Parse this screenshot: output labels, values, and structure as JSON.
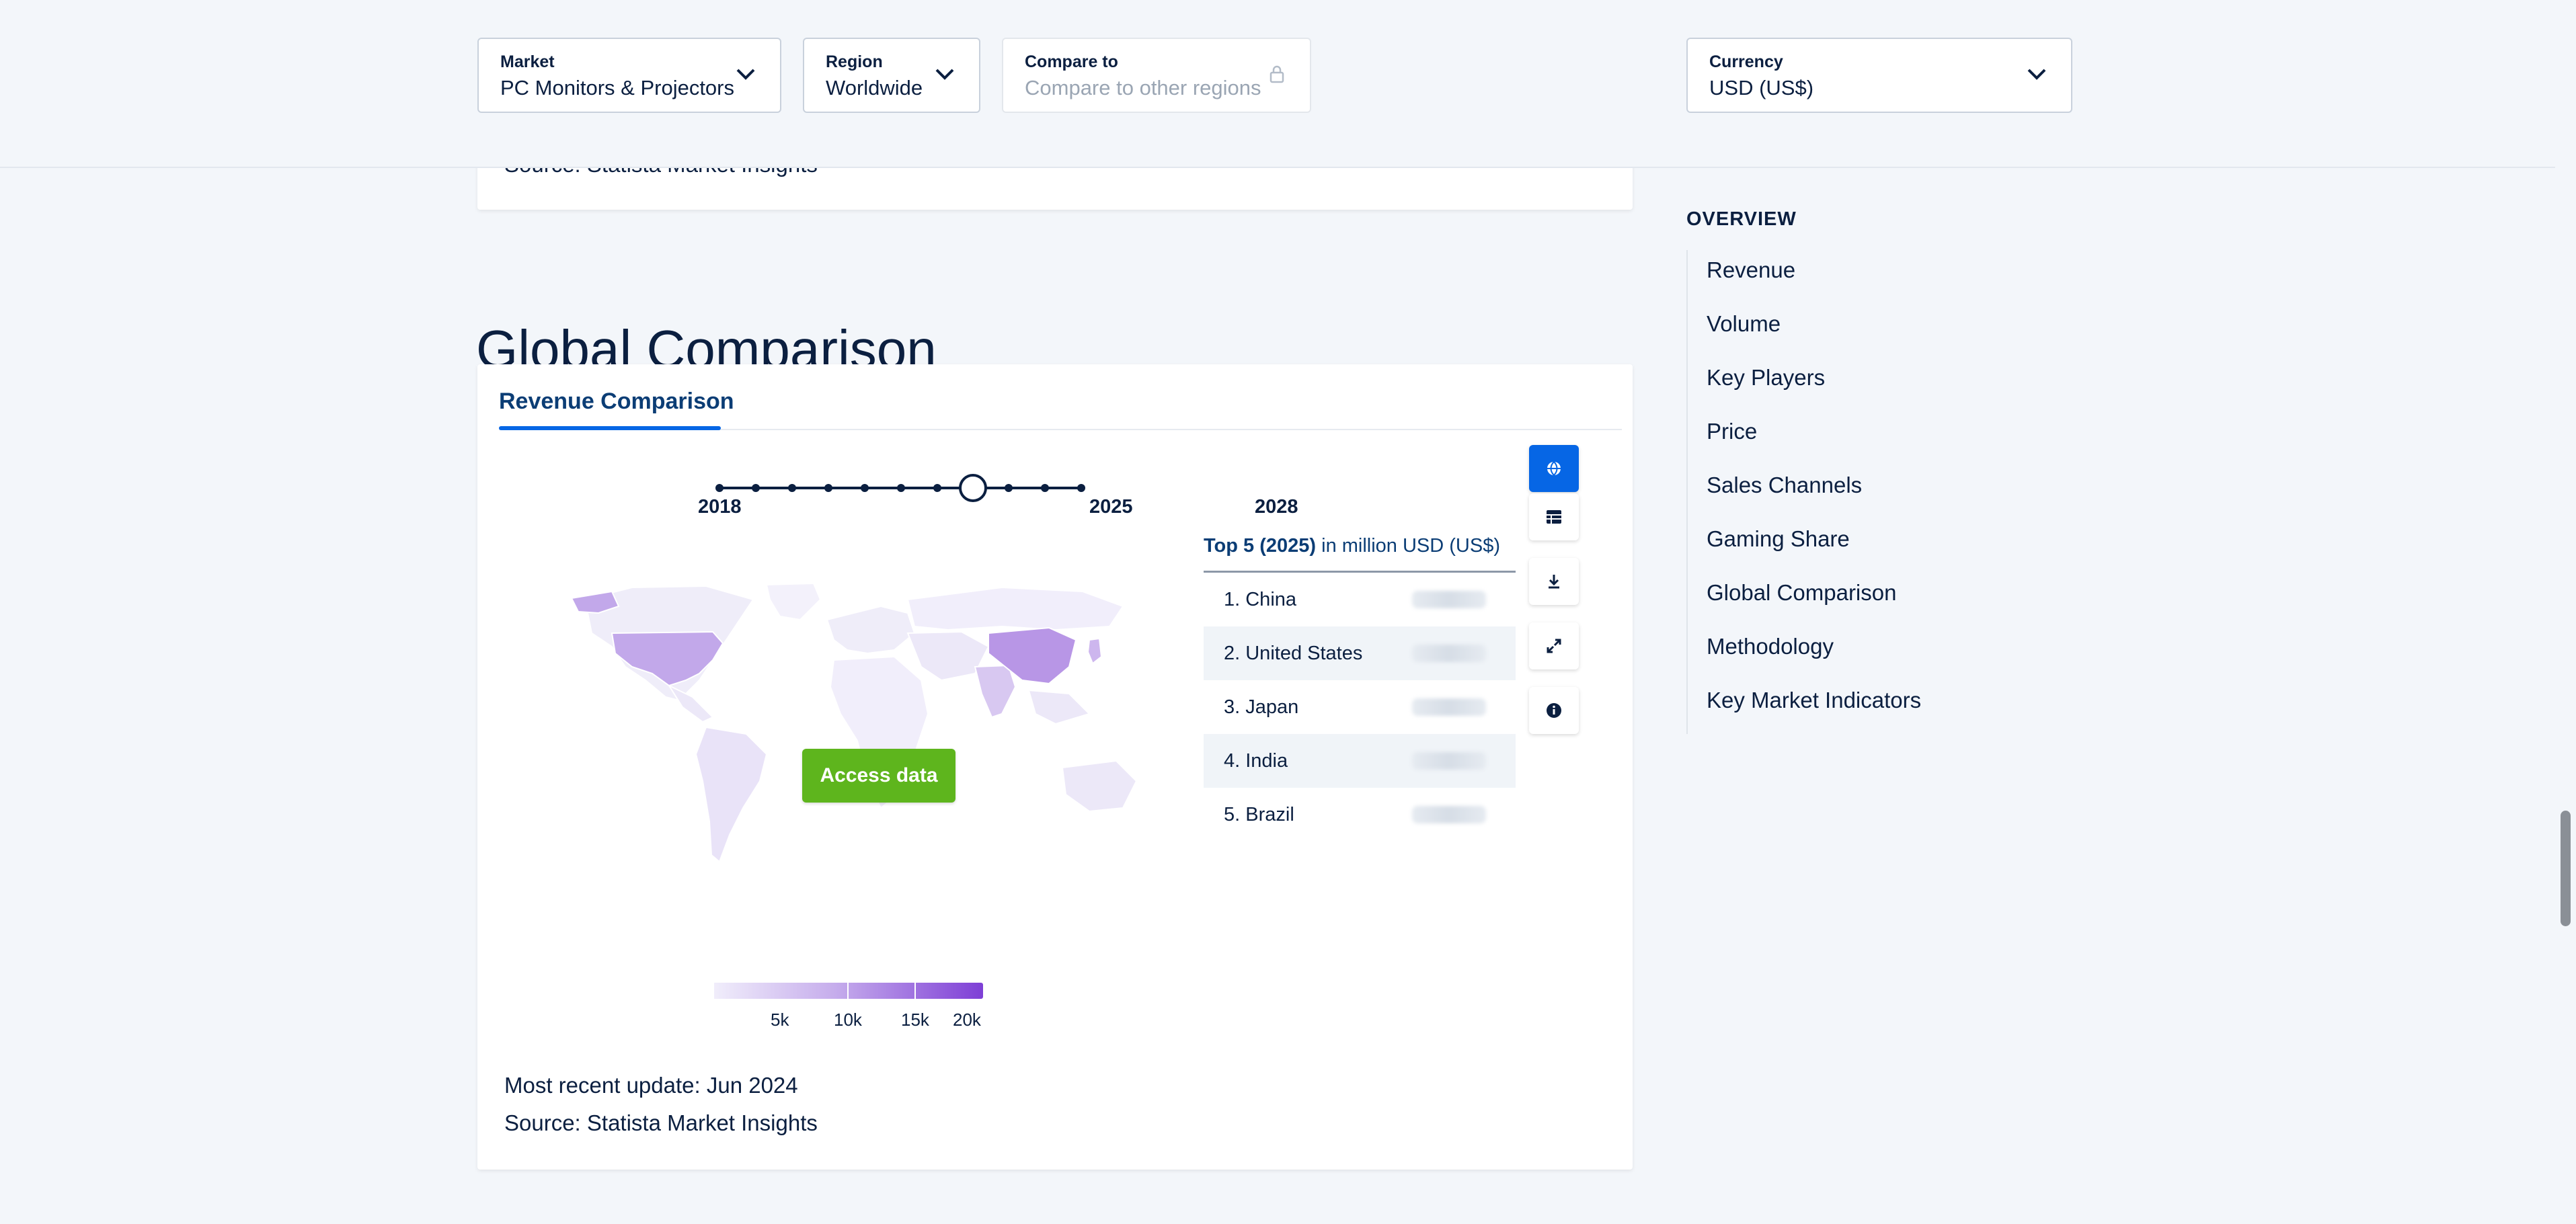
{
  "filters": {
    "market": {
      "label": "Market",
      "value": "PC Monitors & Projectors"
    },
    "region": {
      "label": "Region",
      "value": "Worldwide"
    },
    "compare": {
      "label": "Compare to",
      "placeholder": "Compare to other regions"
    },
    "currency": {
      "label": "Currency",
      "value": "USD (US$)"
    }
  },
  "previous_card": {
    "source": "Source: Statista Market Insights"
  },
  "section": {
    "title": "Global Comparison"
  },
  "card": {
    "tab": "Revenue Comparison",
    "timeline": {
      "start": "2018",
      "selected": "2025",
      "end": "2028"
    },
    "access_button": "Access data",
    "top5": {
      "header_bold": "Top 5 (2025)",
      "header_rest": " in million USD (US$)",
      "rows": [
        "1. China",
        "2. United States",
        "3. Japan",
        "4. India",
        "5. Brazil"
      ]
    },
    "legend": {
      "labels": [
        "5k",
        "10k",
        "15k",
        "20k"
      ]
    },
    "update": "Most recent update: Jun 2024",
    "source": "Source: Statista Market Insights",
    "tools": [
      "globe-icon",
      "table-icon",
      "download-icon",
      "expand-icon",
      "info-icon"
    ]
  },
  "sidebar": {
    "title": "OVERVIEW",
    "items": [
      "Revenue",
      "Volume",
      "Key Players",
      "Price",
      "Sales Channels",
      "Gaming Share",
      "Global Comparison",
      "Methodology",
      "Key Market Indicators"
    ]
  },
  "colors": {
    "accent": "#0666e5",
    "access": "#5eb51d",
    "map_high": "#7e3fd6",
    "map_low": "#f1eefb"
  }
}
